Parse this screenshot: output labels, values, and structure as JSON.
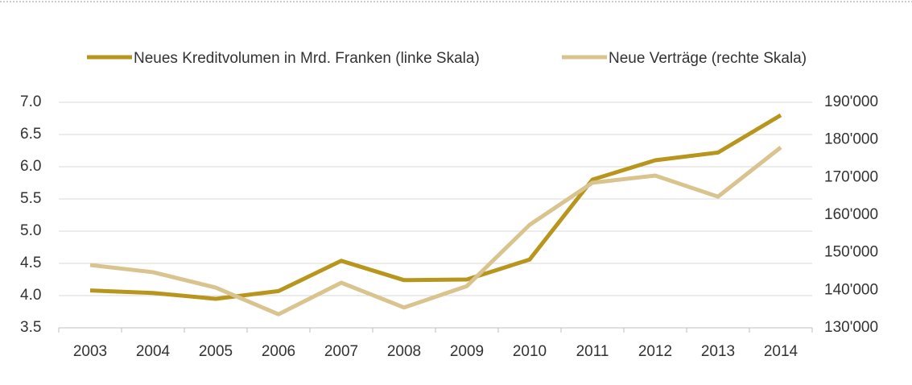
{
  "chart_data": {
    "type": "line",
    "categories": [
      "2003",
      "2004",
      "2005",
      "2006",
      "2007",
      "2008",
      "2009",
      "2010",
      "2011",
      "2012",
      "2013",
      "2014"
    ],
    "series": [
      {
        "name": "Neues Kreditvolumen in Mrd. Franken (linke Skala)",
        "color": "#b8961e",
        "values": [
          4.08,
          4.04,
          3.95,
          4.07,
          4.54,
          4.24,
          4.25,
          4.56,
          5.8,
          6.1,
          6.22,
          6.8
        ]
      },
      {
        "name": "Neue Verträge (rechte Skala)",
        "color": "#d9c48f",
        "axis": "y2",
        "values": [
          146700,
          144800,
          140700,
          133600,
          142000,
          135400,
          141100,
          157400,
          168600,
          170500,
          164900,
          178000
        ]
      }
    ],
    "ylim": [
      3.5,
      7.0
    ],
    "yticks": [
      3.5,
      {
        "value": 4,
        "label": "4.0"
      },
      4.5,
      {
        "value": 5,
        "label": "5.0"
      },
      5.5,
      {
        "value": 6,
        "label": "6.0"
      },
      6.5,
      {
        "value": 7,
        "label": "7.0"
      }
    ],
    "y2lim": [
      130000,
      190000
    ],
    "y2ticks": [
      {
        "value": 130000,
        "label": "130'000"
      },
      {
        "value": 140000,
        "label": "140'000"
      },
      {
        "value": 150000,
        "label": "150'000"
      },
      {
        "value": 160000,
        "label": "160'000"
      },
      {
        "value": 170000,
        "label": "170'000"
      },
      {
        "value": 180000,
        "label": "180'000"
      },
      {
        "value": 190000,
        "label": "190'000"
      }
    ],
    "grid": true,
    "legend": "top"
  }
}
